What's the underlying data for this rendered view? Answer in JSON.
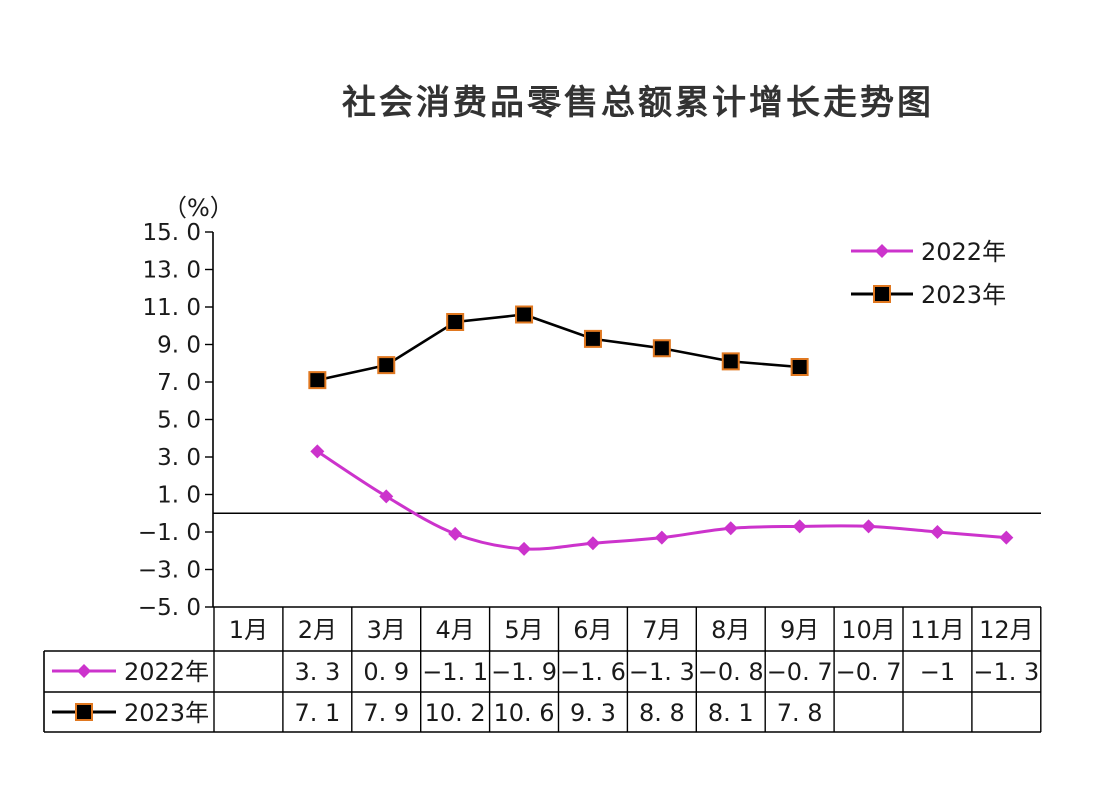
{
  "chart_data": {
    "type": "line",
    "title": "社会消费品零售总额累计增长走势图",
    "ylabel": "（%）",
    "categories": [
      "1月",
      "2月",
      "3月",
      "4月",
      "5月",
      "6月",
      "7月",
      "8月",
      "9月",
      "10月",
      "11月",
      "12月"
    ],
    "ylim": [
      -5.0,
      15.0
    ],
    "yticks": [
      "15. 0",
      "13. 0",
      "11. 0",
      "9. 0",
      "7. 0",
      "5. 0",
      "3. 0",
      "1. 0",
      "−1. 0",
      "−3. 0",
      "−5. 0"
    ],
    "grid": false,
    "legend_position": "top-right",
    "series": [
      {
        "name": "2022年",
        "color": "#cc33cc",
        "marker": "diamond",
        "values": [
          null,
          3.3,
          0.9,
          -1.1,
          -1.9,
          -1.6,
          -1.3,
          -0.8,
          -0.7,
          -0.7,
          -1,
          -1.3
        ],
        "table_labels": [
          "",
          "3. 3",
          "0. 9",
          "−1. 1",
          "−1. 9",
          "−1. 6",
          "−1. 3",
          "−0. 8",
          "−0. 7",
          "−0. 7",
          "−1",
          "−1. 3"
        ]
      },
      {
        "name": "2023年",
        "color": "#000000",
        "marker_fill": "#000000",
        "marker_edge": "#e07820",
        "marker": "square",
        "values": [
          null,
          7.1,
          7.9,
          10.2,
          10.6,
          9.3,
          8.8,
          8.1,
          7.8,
          null,
          null,
          null
        ],
        "table_labels": [
          "",
          "7. 1",
          "7. 9",
          "10. 2",
          "10. 6",
          "9. 3",
          "8. 8",
          "8. 1",
          "7. 8",
          "",
          "",
          ""
        ]
      }
    ]
  }
}
